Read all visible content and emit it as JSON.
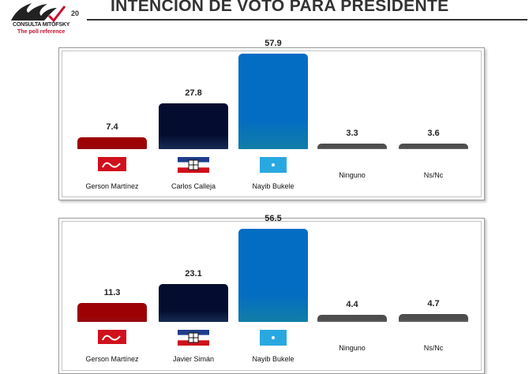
{
  "header": {
    "brand": "CONSULTA MITOFSKY",
    "tagline": "The poll reference",
    "anniversary": "20",
    "title": "INTENCIÓN DE VOTO PARA PRESIDENTE"
  },
  "chart_data": [
    {
      "type": "bar",
      "categories": [
        "Gerson Martínez",
        "Carlos Calleja",
        "Nayib Bukele",
        "Ninguno",
        "Ns/Nc"
      ],
      "values": [
        7.4,
        27.8,
        57.9,
        3.3,
        3.6
      ],
      "value_labels": [
        "7.4",
        "27.8",
        "57.9",
        "3.3",
        "3.6"
      ],
      "emblems": [
        "fmln-logo",
        "arena-flag",
        "gana-flag",
        "",
        ""
      ],
      "colors": [
        "#c8101a",
        "#1e3a6e",
        "#19a7df",
        "#8c8c8c",
        "#8c8c8c"
      ],
      "ylim": [
        0,
        60
      ],
      "grid": false
    },
    {
      "type": "bar",
      "categories": [
        "Gerson Martínez",
        "Javier Simán",
        "Nayib Bukele",
        "Ninguno",
        "Ns/Nc"
      ],
      "values": [
        11.3,
        23.1,
        56.5,
        4.4,
        4.7
      ],
      "value_labels": [
        "11.3",
        "23.1",
        "56.5",
        "4.4",
        "4.7"
      ],
      "emblems": [
        "fmln-logo",
        "arena-flag",
        "gana-flag",
        "",
        ""
      ],
      "colors": [
        "#c8101a",
        "#1e3a6e",
        "#19a7df",
        "#8c8c8c",
        "#8c8c8c"
      ],
      "ylim": [
        0,
        60
      ],
      "grid": false
    }
  ]
}
